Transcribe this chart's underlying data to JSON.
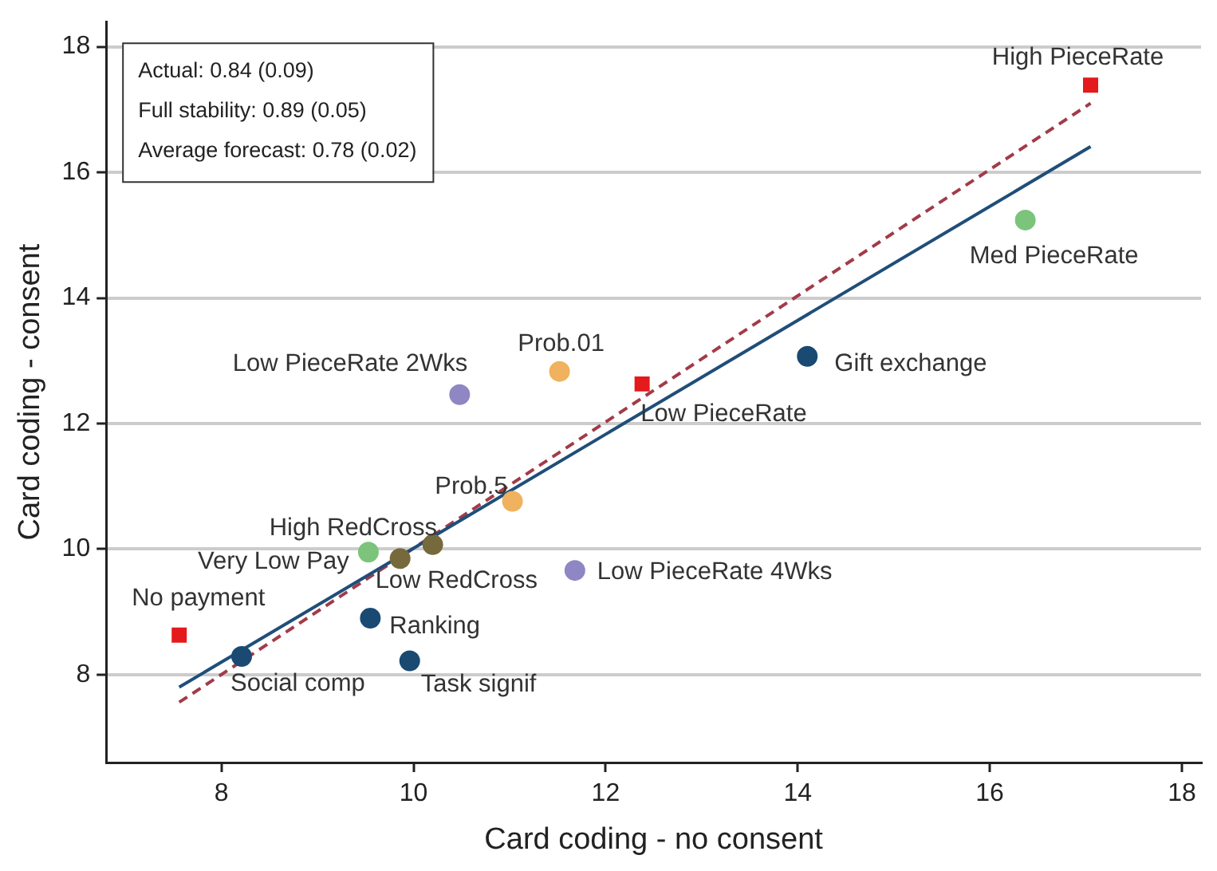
{
  "chart_data": {
    "type": "scatter",
    "xlabel": "Card coding - no consent",
    "ylabel": "Card coding - consent",
    "xlim": [
      6.8,
      18.2
    ],
    "xticks": [
      8,
      10,
      12,
      14,
      16,
      18
    ],
    "ylim": [
      6.6,
      18.4
    ],
    "yticks": [
      8,
      10,
      12,
      14,
      16,
      18
    ],
    "grid": "y",
    "legend": false,
    "series": [
      {
        "type": "scatter",
        "marker": "square",
        "color": "#e41a1c",
        "x": [
          7.56,
          12.38,
          17.05
        ],
        "values": [
          8.63,
          12.63,
          17.39
        ]
      },
      {
        "type": "scatter",
        "marker": "circle",
        "color": "#1a4a72",
        "x": [
          8.21,
          9.55,
          9.96,
          14.1
        ],
        "values": [
          8.29,
          8.9,
          8.22,
          13.07
        ]
      },
      {
        "type": "scatter",
        "marker": "circle",
        "color": "#7cc47c",
        "x": [
          9.53,
          16.37
        ],
        "values": [
          9.95,
          15.24
        ]
      },
      {
        "type": "scatter",
        "marker": "circle",
        "color": "#766a3c",
        "x": [
          9.86,
          10.2
        ],
        "values": [
          9.85,
          10.07
        ]
      },
      {
        "type": "scatter",
        "marker": "circle",
        "color": "#f0b25e",
        "x": [
          11.03,
          11.52
        ],
        "values": [
          10.76,
          12.83
        ]
      },
      {
        "type": "scatter",
        "marker": "circle",
        "color": "#8f86c4",
        "x": [
          10.48,
          11.68
        ],
        "values": [
          12.46,
          9.66
        ]
      },
      {
        "type": "line",
        "marker": "none",
        "line_style": "solid",
        "color": "#1f4e79",
        "x": [
          7.56,
          17.05
        ],
        "values": [
          7.8,
          16.41
        ]
      },
      {
        "type": "line",
        "marker": "none",
        "line_style": "dashed",
        "color": "#a23b48",
        "x": [
          7.56,
          17.05
        ],
        "values": [
          7.56,
          17.1
        ]
      }
    ],
    "annotations": [
      {
        "text": "No payment",
        "x": 7.56,
        "y": 8.63
      },
      {
        "text": "Social comp",
        "x": 8.21,
        "y": 8.29
      },
      {
        "text": "Ranking",
        "x": 9.55,
        "y": 8.9
      },
      {
        "text": "Task signif",
        "x": 9.96,
        "y": 8.22
      },
      {
        "text": "High RedCross",
        "x": 9.53,
        "y": 9.95
      },
      {
        "text": "Very Low Pay",
        "x": 9.86,
        "y": 9.85
      },
      {
        "text": "Low RedCross",
        "x": 10.2,
        "y": 10.07
      },
      {
        "text": "Prob.5",
        "x": 11.03,
        "y": 10.76
      },
      {
        "text": "Low PieceRate 4Wks",
        "x": 11.68,
        "y": 9.66
      },
      {
        "text": "Low PieceRate 2Wks",
        "x": 10.48,
        "y": 12.46
      },
      {
        "text": "Prob.01",
        "x": 11.52,
        "y": 12.83
      },
      {
        "text": "Low PieceRate",
        "x": 12.38,
        "y": 12.63
      },
      {
        "text": "Gift exchange",
        "x": 14.1,
        "y": 13.07
      },
      {
        "text": "Med PieceRate",
        "x": 16.37,
        "y": 15.24
      },
      {
        "text": "High PieceRate",
        "x": 17.05,
        "y": 17.39
      },
      "Actual: 0.84 (0.09)",
      "Full stability: 0.89 (0.05)",
      "Average forecast: 0.78 (0.02)"
    ]
  }
}
